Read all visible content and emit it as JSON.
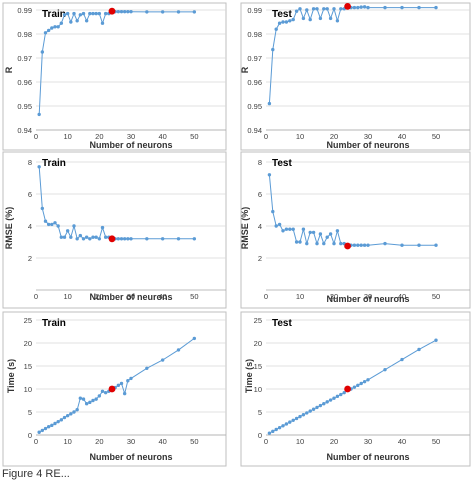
{
  "colors": {
    "line": "#5B9BD5",
    "highlight": "#E00000",
    "grid": "#D9D9D9",
    "axis_text": "#404040"
  },
  "caption_fragment": "Figure 4 RE...",
  "chart_data": [
    {
      "type": "line",
      "title": "Train",
      "xlabel": "Number of neurons",
      "ylabel": "R",
      "xlim": [
        0,
        60
      ],
      "ylim": [
        0.94,
        0.99
      ],
      "xticks": [
        0,
        10,
        20,
        30,
        40,
        50
      ],
      "yticks": [
        0.94,
        0.95,
        0.96,
        0.97,
        0.98,
        0.99
      ],
      "ytick_labels": [
        "0.94",
        "0.95",
        "0.96",
        "0.97",
        "0.98",
        "0.99"
      ],
      "grid": true,
      "x": [
        1,
        2,
        3,
        4,
        5,
        6,
        7,
        8,
        9,
        10,
        11,
        12,
        13,
        14,
        15,
        16,
        17,
        18,
        19,
        20,
        21,
        22,
        23,
        24,
        25,
        26,
        27,
        28,
        29,
        30,
        35,
        40,
        45,
        50
      ],
      "y": [
        0.9465,
        0.9725,
        0.9805,
        0.9815,
        0.9825,
        0.983,
        0.983,
        0.9845,
        0.988,
        0.9885,
        0.985,
        0.9885,
        0.9855,
        0.988,
        0.9885,
        0.9855,
        0.9885,
        0.9885,
        0.9885,
        0.9885,
        0.9845,
        0.9885,
        0.9885,
        0.9895,
        0.9893,
        0.9893,
        0.9893,
        0.9893,
        0.9893,
        0.9893,
        0.9892,
        0.9892,
        0.9892,
        0.9892
      ],
      "highlight": {
        "x": 24,
        "y": 0.9895
      }
    },
    {
      "type": "line",
      "title": "Test",
      "xlabel": "Number of neurons",
      "ylabel": "R",
      "xlim": [
        0,
        60
      ],
      "ylim": [
        0.94,
        0.99
      ],
      "xticks": [
        0,
        10,
        20,
        30,
        40,
        50
      ],
      "yticks": [
        0.94,
        0.95,
        0.96,
        0.97,
        0.98,
        0.99
      ],
      "ytick_labels": [
        "0.94",
        "0.95",
        "0.96",
        "0.97",
        "0.98",
        "0.99"
      ],
      "grid": true,
      "x": [
        1,
        2,
        3,
        4,
        5,
        6,
        7,
        8,
        9,
        10,
        11,
        12,
        13,
        14,
        15,
        16,
        17,
        18,
        19,
        20,
        21,
        22,
        23,
        24,
        25,
        26,
        27,
        28,
        29,
        30,
        35,
        40,
        45,
        50
      ],
      "y": [
        0.951,
        0.9735,
        0.982,
        0.9845,
        0.985,
        0.985,
        0.9855,
        0.986,
        0.9895,
        0.9905,
        0.9865,
        0.99,
        0.986,
        0.9905,
        0.9905,
        0.9865,
        0.9905,
        0.9905,
        0.9865,
        0.9905,
        0.9855,
        0.9905,
        0.9905,
        0.9915,
        0.991,
        0.991,
        0.991,
        0.9912,
        0.9913,
        0.991,
        0.991,
        0.991,
        0.991,
        0.991
      ],
      "highlight": {
        "x": 24,
        "y": 0.9915
      }
    },
    {
      "type": "line",
      "title": "Train",
      "xlabel": "Number of neurons",
      "ylabel": "RMSE (%)",
      "xlim": [
        0,
        60
      ],
      "ylim": [
        0,
        8
      ],
      "xticks": [
        0,
        10,
        20,
        30,
        40,
        50
      ],
      "yticks": [
        2,
        4,
        6,
        8
      ],
      "ytick_labels": [
        "2",
        "4",
        "6",
        "8"
      ],
      "grid": true,
      "x": [
        1,
        2,
        3,
        4,
        5,
        6,
        7,
        8,
        9,
        10,
        11,
        12,
        13,
        14,
        15,
        16,
        17,
        18,
        19,
        20,
        21,
        22,
        23,
        24,
        25,
        26,
        27,
        28,
        29,
        30,
        35,
        40,
        45,
        50
      ],
      "y": [
        7.7,
        5.1,
        4.3,
        4.1,
        4.1,
        4.2,
        4.0,
        3.3,
        3.3,
        3.7,
        3.3,
        4.0,
        3.2,
        3.4,
        3.2,
        3.3,
        3.2,
        3.3,
        3.3,
        3.2,
        3.9,
        3.3,
        3.3,
        3.2,
        3.2,
        3.2,
        3.2,
        3.2,
        3.2,
        3.2,
        3.2,
        3.2,
        3.2,
        3.2
      ],
      "highlight": {
        "x": 24,
        "y": 3.2
      }
    },
    {
      "type": "line",
      "title": "Test",
      "xlabel": "Number of neurons",
      "ylabel": "RMSE (%)",
      "xlim": [
        0,
        60
      ],
      "ylim": [
        0,
        8
      ],
      "xticks": [
        0,
        10,
        20,
        30,
        40,
        50
      ],
      "yticks": [
        2,
        4,
        6,
        8
      ],
      "ytick_labels": [
        "2",
        "4",
        "6",
        "8"
      ],
      "grid": true,
      "x": [
        1,
        2,
        3,
        4,
        5,
        6,
        7,
        8,
        9,
        10,
        11,
        12,
        13,
        14,
        15,
        16,
        17,
        18,
        19,
        20,
        21,
        22,
        23,
        24,
        25,
        26,
        27,
        28,
        29,
        30,
        35,
        40,
        45,
        50
      ],
      "y": [
        7.2,
        4.9,
        4.0,
        4.1,
        3.7,
        3.8,
        3.8,
        3.8,
        3.0,
        3.0,
        3.8,
        2.9,
        3.6,
        3.6,
        2.9,
        3.5,
        2.9,
        3.3,
        3.5,
        2.9,
        3.7,
        2.9,
        2.9,
        2.75,
        2.8,
        2.8,
        2.8,
        2.8,
        2.8,
        2.8,
        2.9,
        2.8,
        2.8,
        2.8
      ],
      "highlight": {
        "x": 24,
        "y": 2.75
      }
    },
    {
      "type": "line",
      "title": "Train",
      "xlabel": "Number of neurons",
      "ylabel": "Time (s)",
      "xlim": [
        0,
        60
      ],
      "ylim": [
        0,
        25
      ],
      "xticks": [
        0,
        10,
        20,
        30,
        40,
        50
      ],
      "yticks": [
        0,
        5,
        10,
        15,
        20,
        25
      ],
      "ytick_labels": [
        "0",
        "5",
        "10",
        "15",
        "20",
        "25"
      ],
      "grid": true,
      "x": [
        1,
        2,
        3,
        4,
        5,
        6,
        7,
        8,
        9,
        10,
        11,
        12,
        13,
        14,
        15,
        16,
        17,
        18,
        19,
        20,
        21,
        22,
        23,
        24,
        25,
        26,
        27,
        28,
        29,
        30,
        35,
        40,
        45,
        50
      ],
      "y": [
        0.6,
        1.0,
        1.4,
        1.8,
        2.1,
        2.5,
        2.9,
        3.3,
        3.8,
        4.2,
        4.6,
        5.0,
        5.5,
        8.0,
        7.8,
        6.8,
        7.1,
        7.5,
        7.8,
        8.5,
        9.5,
        9.2,
        9.5,
        10.0,
        10.3,
        10.8,
        11.2,
        9.0,
        11.8,
        12.3,
        14.5,
        16.3,
        18.5,
        21.0
      ],
      "highlight": {
        "x": 24,
        "y": 10.0
      }
    },
    {
      "type": "line",
      "title": "Test",
      "xlabel": "Number of neurons",
      "ylabel": "Time (s)",
      "xlim": [
        0,
        60
      ],
      "ylim": [
        0,
        25
      ],
      "xticks": [
        0,
        10,
        20,
        30,
        40,
        50
      ],
      "yticks": [
        0,
        5,
        10,
        15,
        20,
        25
      ],
      "ytick_labels": [
        "0",
        "5",
        "10",
        "15",
        "20",
        "25"
      ],
      "grid": true,
      "x": [
        1,
        2,
        3,
        4,
        5,
        6,
        7,
        8,
        9,
        10,
        11,
        12,
        13,
        14,
        15,
        16,
        17,
        18,
        19,
        20,
        21,
        22,
        23,
        24,
        25,
        26,
        27,
        28,
        29,
        30,
        35,
        40,
        45,
        50
      ],
      "y": [
        0.4,
        0.8,
        1.2,
        1.6,
        2.0,
        2.4,
        2.8,
        3.2,
        3.6,
        4.0,
        4.4,
        4.8,
        5.2,
        5.6,
        6.0,
        6.4,
        6.8,
        7.2,
        7.6,
        8.0,
        8.4,
        8.8,
        9.2,
        10.0,
        10.0,
        10.4,
        10.8,
        11.2,
        11.6,
        12.0,
        14.2,
        16.4,
        18.6,
        20.6
      ],
      "highlight": {
        "x": 24,
        "y": 10.0
      }
    }
  ]
}
